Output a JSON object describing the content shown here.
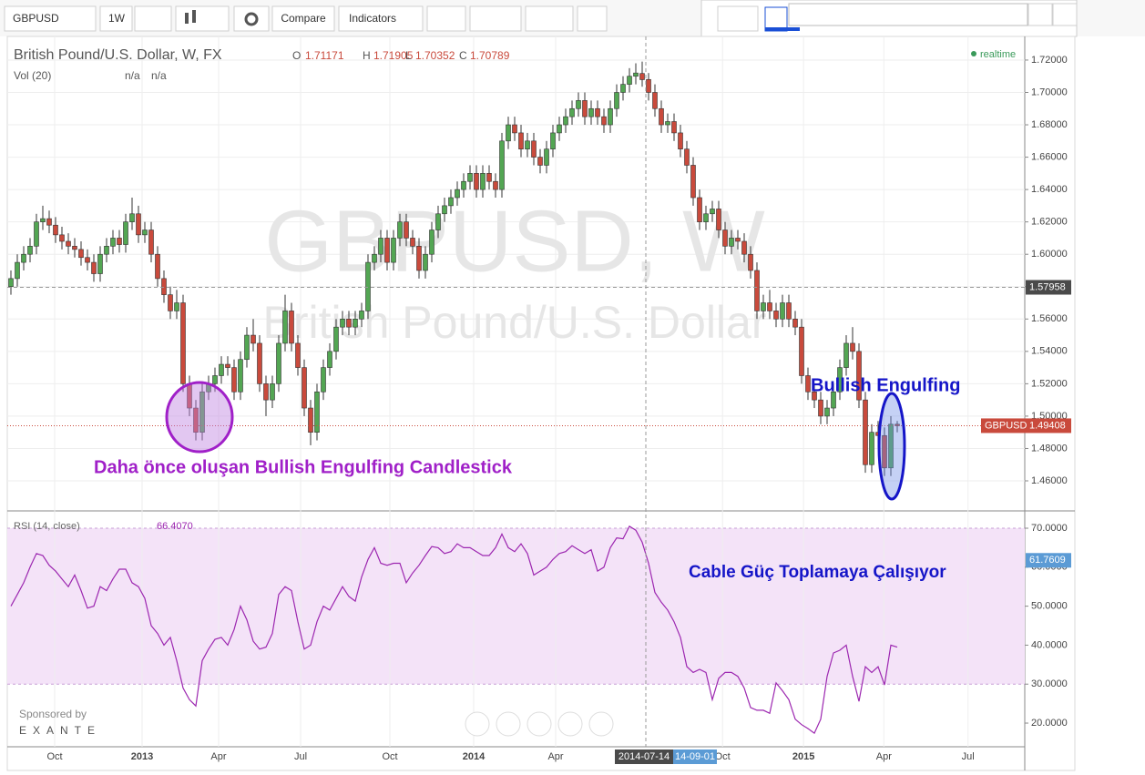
{
  "toolbar": {
    "symbol": "GBPUSD",
    "interval": "1W",
    "compare": "Compare",
    "indicators": "Indicators"
  },
  "chart_data": {
    "type": "candlestick",
    "title": "British Pound/U.S. Dollar, W, FX",
    "ohlc_letters": [
      "O",
      "H",
      "L",
      "C"
    ],
    "realtime": "realtime",
    "watermark": [
      "GBPUSD, W",
      "British Pound/U.S. Dollar"
    ],
    "volume": {
      "title": "Vol (20)",
      "values": [
        "n/a",
        "n/a"
      ]
    },
    "colors": {
      "up": "#53a653",
      "down": "#c94a3c"
    },
    "candles": [
      [
        1.58,
        1.59,
        1.575,
        1.585
      ],
      [
        1.585,
        1.6,
        1.58,
        1.595
      ],
      [
        1.595,
        1.605,
        1.59,
        1.6
      ],
      [
        1.6,
        1.61,
        1.595,
        1.605
      ],
      [
        1.605,
        1.625,
        1.6,
        1.62
      ],
      [
        1.62,
        1.63,
        1.615,
        1.622
      ],
      [
        1.622,
        1.627,
        1.613,
        1.618
      ],
      [
        1.618,
        1.623,
        1.607,
        1.612
      ],
      [
        1.612,
        1.617,
        1.603,
        1.608
      ],
      [
        1.608,
        1.613,
        1.6,
        1.605
      ],
      [
        1.605,
        1.61,
        1.598,
        1.603
      ],
      [
        1.603,
        1.608,
        1.593,
        1.598
      ],
      [
        1.598,
        1.603,
        1.59,
        1.595
      ],
      [
        1.595,
        1.6,
        1.583,
        1.588
      ],
      [
        1.588,
        1.605,
        1.583,
        1.6
      ],
      [
        1.6,
        1.61,
        1.595,
        1.605
      ],
      [
        1.605,
        1.615,
        1.6,
        1.61
      ],
      [
        1.61,
        1.615,
        1.601,
        1.606
      ],
      [
        1.606,
        1.625,
        1.601,
        1.62
      ],
      [
        1.62,
        1.635,
        1.615,
        1.625
      ],
      [
        1.625,
        1.63,
        1.607,
        1.612
      ],
      [
        1.612,
        1.62,
        1.607,
        1.615
      ],
      [
        1.615,
        1.62,
        1.595,
        1.6
      ],
      [
        1.6,
        1.605,
        1.58,
        1.585
      ],
      [
        1.585,
        1.59,
        1.57,
        1.575
      ],
      [
        1.575,
        1.58,
        1.56,
        1.565
      ],
      [
        1.565,
        1.578,
        1.56,
        1.57
      ],
      [
        1.57,
        1.575,
        1.515,
        1.52
      ],
      [
        1.52,
        1.525,
        1.5,
        1.505
      ],
      [
        1.505,
        1.51,
        1.485,
        1.49
      ],
      [
        1.49,
        1.52,
        1.485,
        1.515
      ],
      [
        1.515,
        1.525,
        1.51,
        1.52
      ],
      [
        1.52,
        1.53,
        1.515,
        1.525
      ],
      [
        1.525,
        1.537,
        1.52,
        1.532
      ],
      [
        1.532,
        1.537,
        1.525,
        1.53
      ],
      [
        1.53,
        1.535,
        1.51,
        1.515
      ],
      [
        1.515,
        1.54,
        1.51,
        1.535
      ],
      [
        1.535,
        1.555,
        1.53,
        1.55
      ],
      [
        1.55,
        1.56,
        1.54,
        1.545
      ],
      [
        1.545,
        1.55,
        1.515,
        1.52
      ],
      [
        1.52,
        1.525,
        1.5,
        1.51
      ],
      [
        1.51,
        1.525,
        1.505,
        1.52
      ],
      [
        1.52,
        1.55,
        1.515,
        1.545
      ],
      [
        1.545,
        1.575,
        1.54,
        1.565
      ],
      [
        1.565,
        1.57,
        1.54,
        1.545
      ],
      [
        1.545,
        1.55,
        1.525,
        1.53
      ],
      [
        1.53,
        1.535,
        1.5,
        1.505
      ],
      [
        1.505,
        1.51,
        1.482,
        1.49
      ],
      [
        1.49,
        1.52,
        1.485,
        1.515
      ],
      [
        1.515,
        1.535,
        1.51,
        1.53
      ],
      [
        1.53,
        1.545,
        1.525,
        1.54
      ],
      [
        1.54,
        1.56,
        1.535,
        1.555
      ],
      [
        1.555,
        1.565,
        1.55,
        1.56
      ],
      [
        1.56,
        1.565,
        1.55,
        1.555
      ],
      [
        1.555,
        1.565,
        1.55,
        1.56
      ],
      [
        1.56,
        1.57,
        1.555,
        1.565
      ],
      [
        1.565,
        1.6,
        1.56,
        1.595
      ],
      [
        1.595,
        1.605,
        1.59,
        1.6
      ],
      [
        1.6,
        1.615,
        1.595,
        1.61
      ],
      [
        1.61,
        1.615,
        1.59,
        1.595
      ],
      [
        1.595,
        1.615,
        1.59,
        1.61
      ],
      [
        1.61,
        1.625,
        1.605,
        1.62
      ],
      [
        1.62,
        1.625,
        1.605,
        1.61
      ],
      [
        1.61,
        1.615,
        1.6,
        1.605
      ],
      [
        1.605,
        1.61,
        1.585,
        1.59
      ],
      [
        1.59,
        1.605,
        1.585,
        1.6
      ],
      [
        1.6,
        1.62,
        1.595,
        1.615
      ],
      [
        1.615,
        1.63,
        1.61,
        1.625
      ],
      [
        1.625,
        1.635,
        1.62,
        1.63
      ],
      [
        1.63,
        1.64,
        1.625,
        1.635
      ],
      [
        1.635,
        1.645,
        1.63,
        1.64
      ],
      [
        1.64,
        1.65,
        1.635,
        1.645
      ],
      [
        1.645,
        1.655,
        1.64,
        1.65
      ],
      [
        1.65,
        1.655,
        1.635,
        1.64
      ],
      [
        1.64,
        1.655,
        1.635,
        1.65
      ],
      [
        1.65,
        1.655,
        1.64,
        1.645
      ],
      [
        1.645,
        1.65,
        1.635,
        1.64
      ],
      [
        1.64,
        1.675,
        1.635,
        1.67
      ],
      [
        1.67,
        1.685,
        1.665,
        1.68
      ],
      [
        1.68,
        1.685,
        1.67,
        1.675
      ],
      [
        1.675,
        1.68,
        1.66,
        1.665
      ],
      [
        1.665,
        1.675,
        1.66,
        1.67
      ],
      [
        1.67,
        1.675,
        1.655,
        1.66
      ],
      [
        1.66,
        1.665,
        1.65,
        1.655
      ],
      [
        1.655,
        1.67,
        1.65,
        1.665
      ],
      [
        1.665,
        1.68,
        1.66,
        1.675
      ],
      [
        1.675,
        1.685,
        1.67,
        1.68
      ],
      [
        1.68,
        1.69,
        1.675,
        1.685
      ],
      [
        1.685,
        1.695,
        1.68,
        1.69
      ],
      [
        1.69,
        1.7,
        1.685,
        1.695
      ],
      [
        1.695,
        1.7,
        1.68,
        1.685
      ],
      [
        1.685,
        1.695,
        1.68,
        1.69
      ],
      [
        1.69,
        1.695,
        1.68,
        1.685
      ],
      [
        1.685,
        1.69,
        1.675,
        1.68
      ],
      [
        1.68,
        1.695,
        1.675,
        1.69
      ],
      [
        1.69,
        1.705,
        1.685,
        1.7
      ],
      [
        1.7,
        1.71,
        1.695,
        1.705
      ],
      [
        1.705,
        1.715,
        1.7,
        1.71
      ],
      [
        1.71,
        1.718,
        1.705,
        1.712
      ],
      [
        1.71171,
        1.71905,
        1.70352,
        1.70789
      ],
      [
        1.708,
        1.712,
        1.695,
        1.7
      ],
      [
        1.7,
        1.705,
        1.685,
        1.69
      ],
      [
        1.69,
        1.695,
        1.675,
        1.68
      ],
      [
        1.68,
        1.687,
        1.675,
        1.682
      ],
      [
        1.682,
        1.687,
        1.67,
        1.675
      ],
      [
        1.675,
        1.68,
        1.66,
        1.665
      ],
      [
        1.665,
        1.67,
        1.65,
        1.655
      ],
      [
        1.655,
        1.66,
        1.63,
        1.635
      ],
      [
        1.635,
        1.64,
        1.615,
        1.62
      ],
      [
        1.62,
        1.63,
        1.615,
        1.625
      ],
      [
        1.625,
        1.633,
        1.62,
        1.628
      ],
      [
        1.628,
        1.633,
        1.61,
        1.615
      ],
      [
        1.615,
        1.62,
        1.6,
        1.605
      ],
      [
        1.605,
        1.615,
        1.6,
        1.61
      ],
      [
        1.61,
        1.615,
        1.603,
        1.608
      ],
      [
        1.608,
        1.613,
        1.595,
        1.6
      ],
      [
        1.6,
        1.605,
        1.585,
        1.59
      ],
      [
        1.59,
        1.595,
        1.56,
        1.565
      ],
      [
        1.565,
        1.575,
        1.56,
        1.57
      ],
      [
        1.57,
        1.578,
        1.56,
        1.565
      ],
      [
        1.565,
        1.57,
        1.555,
        1.56
      ],
      [
        1.56,
        1.575,
        1.555,
        1.57
      ],
      [
        1.57,
        1.575,
        1.555,
        1.56
      ],
      [
        1.56,
        1.565,
        1.55,
        1.555
      ],
      [
        1.555,
        1.56,
        1.52,
        1.525
      ],
      [
        1.525,
        1.53,
        1.51,
        1.515
      ],
      [
        1.515,
        1.52,
        1.505,
        1.51
      ],
      [
        1.51,
        1.515,
        1.495,
        1.5
      ],
      [
        1.5,
        1.51,
        1.495,
        1.505
      ],
      [
        1.505,
        1.52,
        1.5,
        1.515
      ],
      [
        1.515,
        1.535,
        1.51,
        1.53
      ],
      [
        1.53,
        1.55,
        1.525,
        1.545
      ],
      [
        1.545,
        1.555,
        1.535,
        1.54
      ],
      [
        1.54,
        1.545,
        1.505,
        1.51
      ],
      [
        1.51,
        1.515,
        1.465,
        1.47
      ],
      [
        1.47,
        1.495,
        1.465,
        1.49
      ],
      [
        1.49,
        1.497,
        1.483,
        1.488
      ],
      [
        1.488,
        1.493,
        1.463,
        1.468
      ],
      [
        1.468,
        1.5,
        1.463,
        1.495
      ],
      [
        1.495,
        1.497,
        1.49,
        1.49408
      ]
    ],
    "xlim": [
      -0.57,
      159
    ],
    "xticks": [
      {
        "value": 6.86,
        "label": "Oct"
      },
      {
        "value": 20.57,
        "label": "2013"
      },
      {
        "value": 32.57,
        "label": "Apr"
      },
      {
        "value": 45.43,
        "label": "Jul"
      },
      {
        "value": 59.43,
        "label": "Oct"
      },
      {
        "value": 72.57,
        "label": "2014"
      },
      {
        "value": 85.43,
        "label": "Apr"
      },
      {
        "value": 111.6,
        "label": "Oct"
      },
      {
        "value": 124.3,
        "label": "2015"
      },
      {
        "value": 136.9,
        "label": "Apr"
      },
      {
        "value": 150.1,
        "label": "Jul"
      }
    ],
    "ylim": [
      1.442,
      1.7346
    ],
    "yticks": [
      {
        "value": 1.46,
        "label": "1.46000"
      },
      {
        "value": 1.48,
        "label": "1.48000"
      },
      {
        "value": 1.5,
        "label": "1.50000"
      },
      {
        "value": 1.52,
        "label": "1.52000"
      },
      {
        "value": 1.54,
        "label": "1.54000"
      },
      {
        "value": 1.56,
        "label": "1.56000"
      },
      {
        "value": 1.58,
        "label": "1.58000"
      },
      {
        "value": 1.6,
        "label": "1.60000"
      },
      {
        "value": 1.62,
        "label": "1.62000"
      },
      {
        "value": 1.64,
        "label": "1.64000"
      },
      {
        "value": 1.66,
        "label": "1.66000"
      },
      {
        "value": 1.68,
        "label": "1.68000"
      },
      {
        "value": 1.7,
        "label": "1.70000"
      },
      {
        "value": 1.72,
        "label": "1.72000"
      }
    ],
    "grid": true,
    "crosshair_date": "2014-07-14",
    "time_marker": "14-09-01",
    "crosshair_price": 1.57958,
    "rsi": {
      "title": "RSI (14, close)",
      "readout": "66.4070",
      "color": "#9c27b0",
      "marker": 61.7609,
      "band": [
        30,
        70
      ],
      "values": [
        50,
        53,
        56,
        60,
        63.5,
        63,
        60.5,
        59,
        57,
        55,
        58,
        54,
        49.5,
        50,
        55,
        54,
        57,
        59.5,
        59.5,
        56,
        55,
        52,
        45,
        43,
        40,
        42,
        36,
        29,
        26,
        24.4,
        36,
        39,
        41.5,
        42,
        40,
        44,
        50,
        46.5,
        41,
        39,
        39.5,
        43,
        53,
        55,
        54,
        46,
        39,
        40,
        46,
        50,
        49,
        52,
        55,
        52.5,
        51.3,
        57.5,
        62,
        65,
        61,
        60.5,
        61,
        61,
        56,
        58.5,
        60.5,
        63,
        65.3,
        65,
        63.5,
        64,
        66,
        65,
        65,
        64,
        63,
        63,
        65,
        68.5,
        65,
        64,
        66,
        63.5,
        58,
        59,
        60,
        62,
        63.5,
        64,
        65.5,
        64.5,
        63.5,
        64.5,
        59,
        60,
        65,
        67.5,
        67.3,
        70.5,
        69.5,
        66.407,
        61,
        53.5,
        51,
        49,
        46,
        42,
        34.5,
        33,
        33.8,
        33,
        26,
        31.5,
        33,
        33,
        32,
        29,
        24,
        23.3,
        23.3,
        22.5,
        30.3,
        28.3,
        26,
        21,
        19.6,
        18.6,
        17.4,
        21,
        32,
        38,
        38.7,
        40,
        32,
        25.6,
        34.5,
        33,
        34.5,
        29.8,
        40,
        39.5
      ],
      "ylim": [
        13.93,
        74.21
      ],
      "yticks": [
        {
          "value": 20,
          "label": "20.0000"
        },
        {
          "value": 30,
          "label": "30.0000"
        },
        {
          "value": 40,
          "label": "40.0000"
        },
        {
          "value": 50,
          "label": "50.0000"
        },
        {
          "value": 60,
          "label": "60.0000"
        },
        {
          "value": 70,
          "label": "70.0000"
        }
      ]
    },
    "annotations": [
      "Bullish Engulfing",
      "Daha önce oluşan Bullish Engulfing Candlestick",
      "Cable Güç Toplamaya Çalışıyor"
    ]
  },
  "sponsor": {
    "label": "Sponsored by",
    "name": "EXANTE"
  }
}
